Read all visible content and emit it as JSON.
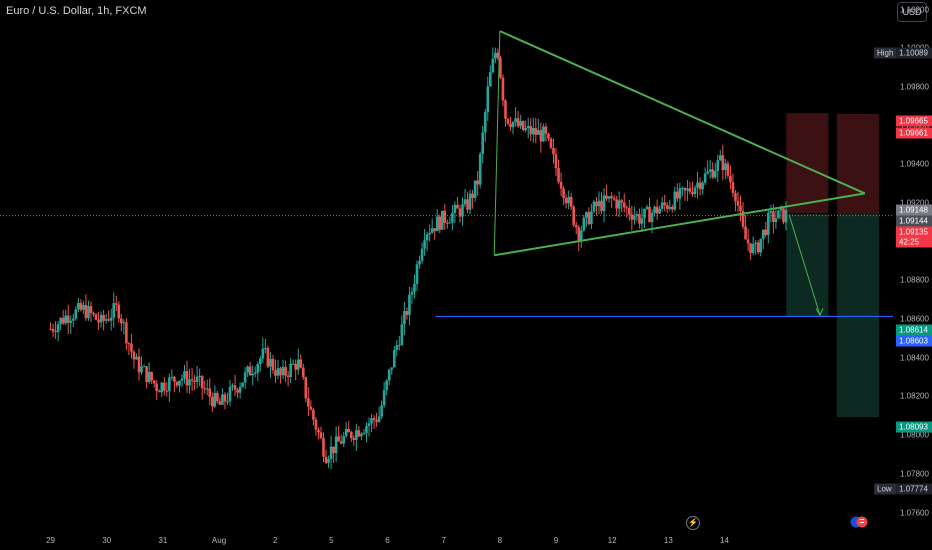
{
  "header": {
    "title": "Euro / U.S. Dollar, 1h, FXCM",
    "currency": "USD"
  },
  "colors": {
    "up": "#26a69a",
    "down": "#ef5350",
    "triangle": "#4caf50",
    "target_line": "#2962ff",
    "stop_zone": "#3b1114",
    "target_zone": "#0c2a22",
    "price_line": "#ef5350"
  },
  "icons": {
    "event": "lightning-icon",
    "flags": "eu-us-flag-icon"
  },
  "chart_data": {
    "type": "candlestick",
    "y_axis": {
      "ticks": [
        "1.10200",
        "1.10000",
        "1.09800",
        "1.09600",
        "1.09400",
        "1.09200",
        "1.09000",
        "1.08800",
        "1.08600",
        "1.08400",
        "1.08200",
        "1.08000",
        "1.07800",
        "1.07600"
      ],
      "ylim": [
        1.0752,
        1.1025
      ]
    },
    "x_axis": {
      "ticks": [
        "29",
        "30",
        "31",
        "Aug",
        "2",
        "5",
        "6",
        "7",
        "8",
        "9",
        "12",
        "13",
        "14"
      ]
    },
    "price_tags": {
      "high": {
        "label": "High",
        "value": "1.10089"
      },
      "low": {
        "label": "Low",
        "value": "1.07774"
      },
      "stop_top": "1.09665",
      "stop_bottom": "1.09661",
      "entry_a": "1.09148",
      "entry_b": "1.09144",
      "last": "1.09135",
      "countdown": "42:25",
      "target_a": "1.08614",
      "target_b": "1.08603",
      "target_far": "1.08093"
    },
    "close_path": [
      [
        0,
        1.0855
      ],
      [
        0.3,
        1.0862
      ],
      [
        0.6,
        1.0865
      ],
      [
        0.9,
        1.0858
      ],
      [
        1.2,
        1.0866
      ],
      [
        1.5,
        1.0838
      ],
      [
        1.9,
        1.0825
      ],
      [
        2.3,
        1.083
      ],
      [
        2.6,
        1.0828
      ],
      [
        3.0,
        1.0815
      ],
      [
        3.4,
        1.0828
      ],
      [
        3.8,
        1.0842
      ],
      [
        4.1,
        1.083
      ],
      [
        4.4,
        1.0838
      ],
      [
        4.6,
        1.0815
      ],
      [
        4.9,
        1.079
      ],
      [
        5.2,
        1.0798
      ],
      [
        5.6,
        1.0805
      ],
      [
        5.85,
        1.081
      ],
      [
        6.1,
        1.084
      ],
      [
        6.4,
        1.087
      ],
      [
        6.65,
        1.0905
      ],
      [
        7.0,
        1.0912
      ],
      [
        7.4,
        1.0918
      ],
      [
        7.6,
        1.093
      ],
      [
        7.8,
        1.0982
      ],
      [
        7.95,
        1.1002
      ],
      [
        8.1,
        1.0965
      ],
      [
        8.4,
        1.0958
      ],
      [
        8.8,
        1.0955
      ],
      [
        9.1,
        1.093
      ],
      [
        9.4,
        1.0905
      ],
      [
        9.7,
        1.0918
      ],
      [
        10.0,
        1.0922
      ],
      [
        10.5,
        1.0912
      ],
      [
        10.9,
        1.0918
      ],
      [
        11.3,
        1.0925
      ],
      [
        11.7,
        1.0935
      ],
      [
        11.95,
        1.0942
      ],
      [
        12.2,
        1.0925
      ],
      [
        12.35,
        1.0902
      ],
      [
        12.55,
        1.0895
      ],
      [
        12.8,
        1.0912
      ],
      [
        13.1,
        1.0914
      ]
    ],
    "annotations": {
      "triangle": {
        "apex": [
          8.0,
          1.10089
        ],
        "bottom_left": [
          7.9,
          1.0893
        ],
        "tip": [
          14.5,
          1.0925
        ]
      },
      "entry_price": 1.09135,
      "target_line": 1.08614,
      "arrow": [
        [
          13.15,
          1.0914
        ],
        [
          13.7,
          1.0862
        ]
      ],
      "stop_zone_1": {
        "x": [
          13.1,
          13.85
        ],
        "y": [
          1.09148,
          1.09665
        ]
      },
      "target_zone_1": {
        "x": [
          13.1,
          13.85
        ],
        "y": [
          1.08614,
          1.09144
        ]
      },
      "stop_zone_2": {
        "x": [
          14.0,
          14.75
        ],
        "y": [
          1.09144,
          1.09661
        ]
      },
      "target_zone_2": {
        "x": [
          14.0,
          14.75
        ],
        "y": [
          1.08093,
          1.09144
        ]
      }
    }
  }
}
